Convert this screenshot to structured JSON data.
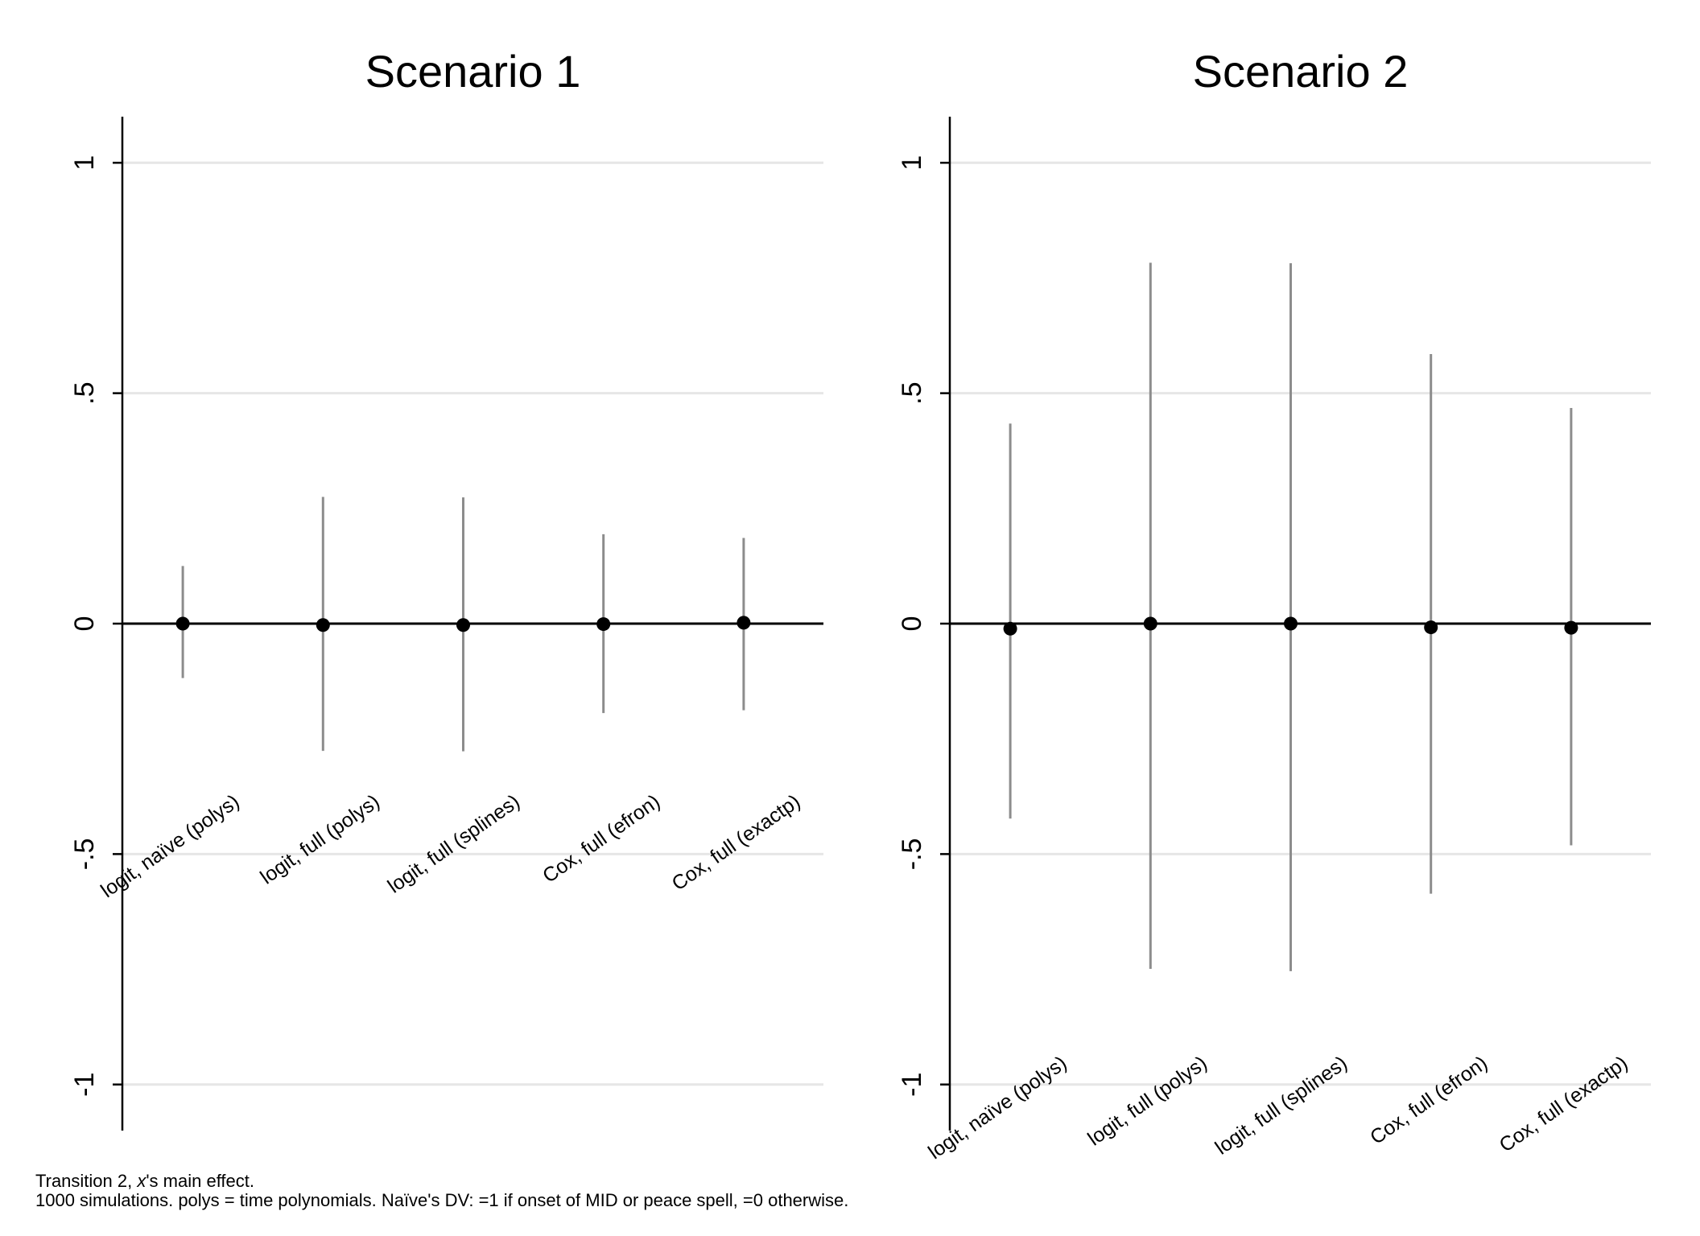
{
  "chart_data": [
    {
      "type": "scatter",
      "title": "Scenario 1",
      "xlabel": "",
      "ylabel": "",
      "ylim": [
        -1.1,
        1.1
      ],
      "yticks": [
        -1,
        -0.5,
        0,
        0.5,
        1
      ],
      "ytick_labels": [
        "-1",
        "-.5",
        "0",
        ".5",
        "1"
      ],
      "reference_line": 0,
      "grid": true,
      "categories": [
        "logit, naïve (polys)",
        "logit, full (polys)",
        "logit, full (splines)",
        "Cox, full (efron)",
        "Cox, full (exactp)"
      ],
      "series": [
        {
          "estimate": [
            0.0,
            -0.003,
            -0.003,
            -0.001,
            0.002
          ],
          "lower": [
            -0.118,
            -0.276,
            -0.277,
            -0.194,
            -0.188
          ],
          "upper": [
            0.125,
            0.275,
            0.274,
            0.194,
            0.186
          ]
        }
      ]
    },
    {
      "type": "scatter",
      "title": "Scenario 2",
      "xlabel": "",
      "ylabel": "",
      "ylim": [
        -1.1,
        1.1
      ],
      "yticks": [
        -1,
        -0.5,
        0,
        0.5,
        1
      ],
      "ytick_labels": [
        "-1",
        "-.5",
        "0",
        ".5",
        "1"
      ],
      "reference_line": 0,
      "grid": true,
      "categories": [
        "logit, naïve (polys)",
        "logit, full (polys)",
        "logit, full (splines)",
        "Cox, full (efron)",
        "Cox, full (exactp)"
      ],
      "series": [
        {
          "estimate": [
            -0.011,
            0.0,
            0.0,
            -0.008,
            -0.009
          ],
          "lower": [
            -0.423,
            -0.749,
            -0.754,
            -0.586,
            -0.481
          ],
          "upper": [
            0.434,
            0.783,
            0.782,
            0.585,
            0.468
          ]
        }
      ]
    }
  ],
  "notes": {
    "line1_prefix": "Transition 2, ",
    "line1_var": "x",
    "line1_suffix": "'s main effect.",
    "line2": "1000 simulations.  polys = time polynomials.  Naïve's DV: =1 if onset of MID or peace spell, =0 otherwise."
  },
  "colors": {
    "ci_line": "#8c8c8c",
    "point": "#000000",
    "grid": "#e6e6e6",
    "axis": "#000000"
  }
}
